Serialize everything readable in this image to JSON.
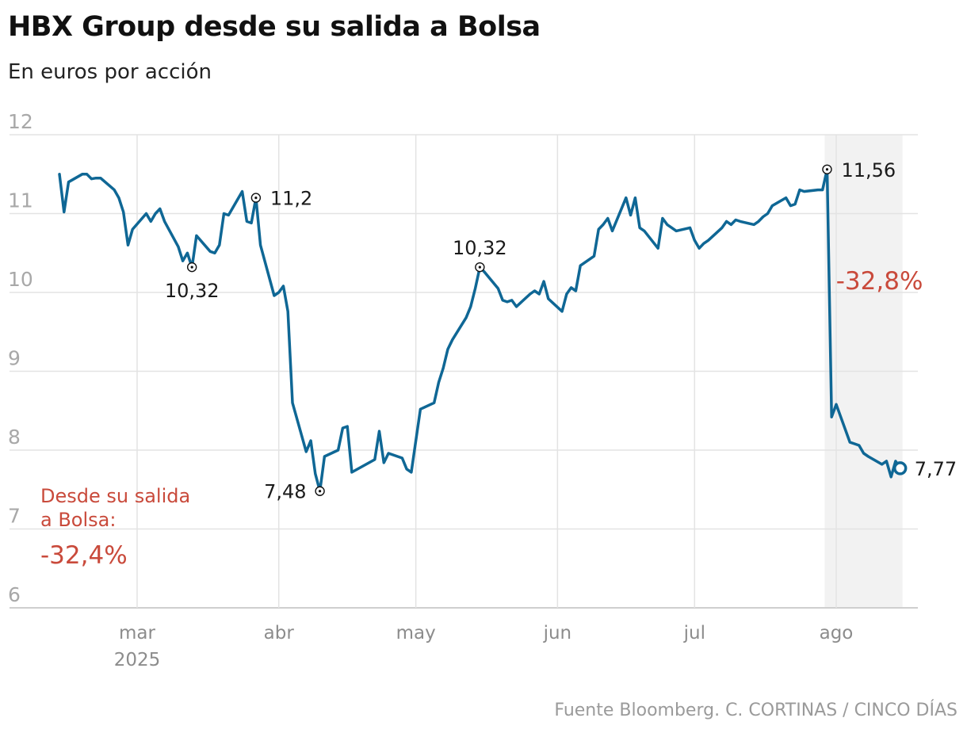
{
  "header": {
    "title": "HBX Group desde su salida a Bolsa",
    "subtitle": "En euros por acción"
  },
  "footer": {
    "source": "Fuente Bloomberg. C. CORTINAS / CINCO DÍAS"
  },
  "colors": {
    "line": "#0f6795",
    "grid": "#e3e3e3",
    "highlight_band": "#f2f2f2",
    "accent_red": "#c94a3b"
  },
  "chart_data": {
    "type": "line",
    "title": "HBX Group desde su salida a Bolsa",
    "ylabel": "En euros por acción",
    "ylim": [
      6,
      12
    ],
    "yticks": [
      6,
      7,
      8,
      9,
      10,
      11,
      12
    ],
    "x_ticks": [
      {
        "date": "2025-03-01",
        "label": "mar",
        "year": "2025"
      },
      {
        "date": "2025-04-01",
        "label": "abr"
      },
      {
        "date": "2025-05-01",
        "label": "may"
      },
      {
        "date": "2025-06-01",
        "label": "jun"
      },
      {
        "date": "2025-07-01",
        "label": "jul"
      },
      {
        "date": "2025-08-01",
        "label": "ago"
      }
    ],
    "highlight": {
      "from": "2025-07-30",
      "to": "2025-08-15",
      "label": "-32,8%"
    },
    "summary": {
      "label": "Desde su salida a Bolsa:",
      "line1": "Desde su salida",
      "line2": "a Bolsa:",
      "value": "-32,4%"
    },
    "annotations": [
      {
        "date": "2025-03-13",
        "value": 10.32,
        "label": "10,32",
        "pos": "below"
      },
      {
        "date": "2025-03-27",
        "value": 11.2,
        "label": "11,2",
        "pos": "right"
      },
      {
        "date": "2025-04-10",
        "value": 7.48,
        "label": "7,48",
        "pos": "left"
      },
      {
        "date": "2025-05-15",
        "value": 10.32,
        "label": "10,32",
        "pos": "above"
      },
      {
        "date": "2025-07-30",
        "value": 11.56,
        "label": "11,56",
        "pos": "right"
      },
      {
        "date": "2025-08-15",
        "value": 7.77,
        "label": "7,77",
        "pos": "right",
        "end": true
      }
    ],
    "series": [
      {
        "points": [
          [
            "2025-02-12",
            11.5
          ],
          [
            "2025-02-13",
            11.02
          ],
          [
            "2025-02-14",
            11.4
          ],
          [
            "2025-02-17",
            11.5
          ],
          [
            "2025-02-18",
            11.5
          ],
          [
            "2025-02-19",
            11.44
          ],
          [
            "2025-02-20",
            11.45
          ],
          [
            "2025-02-21",
            11.45
          ],
          [
            "2025-02-24",
            11.3
          ],
          [
            "2025-02-25",
            11.2
          ],
          [
            "2025-02-26",
            11.02
          ],
          [
            "2025-02-27",
            10.6
          ],
          [
            "2025-02-28",
            10.8
          ],
          [
            "2025-03-03",
            11.0
          ],
          [
            "2025-03-04",
            10.9
          ],
          [
            "2025-03-05",
            11.0
          ],
          [
            "2025-03-06",
            11.06
          ],
          [
            "2025-03-07",
            10.9
          ],
          [
            "2025-03-10",
            10.58
          ],
          [
            "2025-03-11",
            10.4
          ],
          [
            "2025-03-12",
            10.5
          ],
          [
            "2025-03-13",
            10.32
          ],
          [
            "2025-03-14",
            10.72
          ],
          [
            "2025-03-17",
            10.52
          ],
          [
            "2025-03-18",
            10.5
          ],
          [
            "2025-03-19",
            10.6
          ],
          [
            "2025-03-20",
            11.0
          ],
          [
            "2025-03-21",
            10.98
          ],
          [
            "2025-03-24",
            11.28
          ],
          [
            "2025-03-25",
            10.9
          ],
          [
            "2025-03-26",
            10.88
          ],
          [
            "2025-03-27",
            11.2
          ],
          [
            "2025-03-28",
            10.6
          ],
          [
            "2025-03-31",
            9.96
          ],
          [
            "2025-04-01",
            10.0
          ],
          [
            "2025-04-02",
            10.08
          ],
          [
            "2025-04-03",
            9.76
          ],
          [
            "2025-04-04",
            8.6
          ],
          [
            "2025-04-07",
            7.98
          ],
          [
            "2025-04-08",
            8.12
          ],
          [
            "2025-04-09",
            7.7
          ],
          [
            "2025-04-10",
            7.48
          ],
          [
            "2025-04-11",
            7.92
          ],
          [
            "2025-04-14",
            8.0
          ],
          [
            "2025-04-15",
            8.28
          ],
          [
            "2025-04-16",
            8.3
          ],
          [
            "2025-04-17",
            7.72
          ],
          [
            "2025-04-22",
            7.88
          ],
          [
            "2025-04-23",
            8.24
          ],
          [
            "2025-04-24",
            7.84
          ],
          [
            "2025-04-25",
            7.96
          ],
          [
            "2025-04-28",
            7.9
          ],
          [
            "2025-04-29",
            7.76
          ],
          [
            "2025-04-30",
            7.72
          ],
          [
            "2025-05-02",
            8.52
          ],
          [
            "2025-05-05",
            8.6
          ],
          [
            "2025-05-06",
            8.86
          ],
          [
            "2025-05-07",
            9.04
          ],
          [
            "2025-05-08",
            9.28
          ],
          [
            "2025-05-09",
            9.4
          ],
          [
            "2025-05-12",
            9.68
          ],
          [
            "2025-05-13",
            9.82
          ],
          [
            "2025-05-14",
            10.05
          ],
          [
            "2025-05-15",
            10.32
          ],
          [
            "2025-05-16",
            10.26
          ],
          [
            "2025-05-19",
            10.05
          ],
          [
            "2025-05-20",
            9.9
          ],
          [
            "2025-05-21",
            9.88
          ],
          [
            "2025-05-22",
            9.9
          ],
          [
            "2025-05-23",
            9.82
          ],
          [
            "2025-05-26",
            9.98
          ],
          [
            "2025-05-27",
            10.02
          ],
          [
            "2025-05-28",
            9.98
          ],
          [
            "2025-05-29",
            10.14
          ],
          [
            "2025-05-30",
            9.92
          ],
          [
            "2025-06-02",
            9.76
          ],
          [
            "2025-06-03",
            9.98
          ],
          [
            "2025-06-04",
            10.06
          ],
          [
            "2025-06-05",
            10.02
          ],
          [
            "2025-06-06",
            10.34
          ],
          [
            "2025-06-09",
            10.46
          ],
          [
            "2025-06-10",
            10.8
          ],
          [
            "2025-06-11",
            10.86
          ],
          [
            "2025-06-12",
            10.94
          ],
          [
            "2025-06-13",
            10.78
          ],
          [
            "2025-06-16",
            11.2
          ],
          [
            "2025-06-17",
            10.98
          ],
          [
            "2025-06-18",
            11.2
          ],
          [
            "2025-06-19",
            10.82
          ],
          [
            "2025-06-20",
            10.78
          ],
          [
            "2025-06-23",
            10.56
          ],
          [
            "2025-06-24",
            10.94
          ],
          [
            "2025-06-25",
            10.86
          ],
          [
            "2025-06-26",
            10.82
          ],
          [
            "2025-06-27",
            10.78
          ],
          [
            "2025-06-30",
            10.82
          ],
          [
            "2025-07-01",
            10.66
          ],
          [
            "2025-07-02",
            10.56
          ],
          [
            "2025-07-03",
            10.62
          ],
          [
            "2025-07-04",
            10.66
          ],
          [
            "2025-07-07",
            10.82
          ],
          [
            "2025-07-08",
            10.9
          ],
          [
            "2025-07-09",
            10.86
          ],
          [
            "2025-07-10",
            10.92
          ],
          [
            "2025-07-11",
            10.9
          ],
          [
            "2025-07-14",
            10.86
          ],
          [
            "2025-07-15",
            10.9
          ],
          [
            "2025-07-16",
            10.96
          ],
          [
            "2025-07-17",
            11.0
          ],
          [
            "2025-07-18",
            11.1
          ],
          [
            "2025-07-21",
            11.2
          ],
          [
            "2025-07-22",
            11.1
          ],
          [
            "2025-07-23",
            11.12
          ],
          [
            "2025-07-24",
            11.3
          ],
          [
            "2025-07-25",
            11.28
          ],
          [
            "2025-07-28",
            11.3
          ],
          [
            "2025-07-29",
            11.3
          ],
          [
            "2025-07-30",
            11.56
          ],
          [
            "2025-07-31",
            8.42
          ],
          [
            "2025-08-01",
            8.58
          ],
          [
            "2025-08-04",
            8.1
          ],
          [
            "2025-08-05",
            8.08
          ],
          [
            "2025-08-06",
            8.06
          ],
          [
            "2025-08-07",
            7.96
          ],
          [
            "2025-08-08",
            7.92
          ],
          [
            "2025-08-11",
            7.82
          ],
          [
            "2025-08-12",
            7.86
          ],
          [
            "2025-08-13",
            7.66
          ],
          [
            "2025-08-14",
            7.86
          ],
          [
            "2025-08-15",
            7.77
          ]
        ]
      }
    ]
  }
}
